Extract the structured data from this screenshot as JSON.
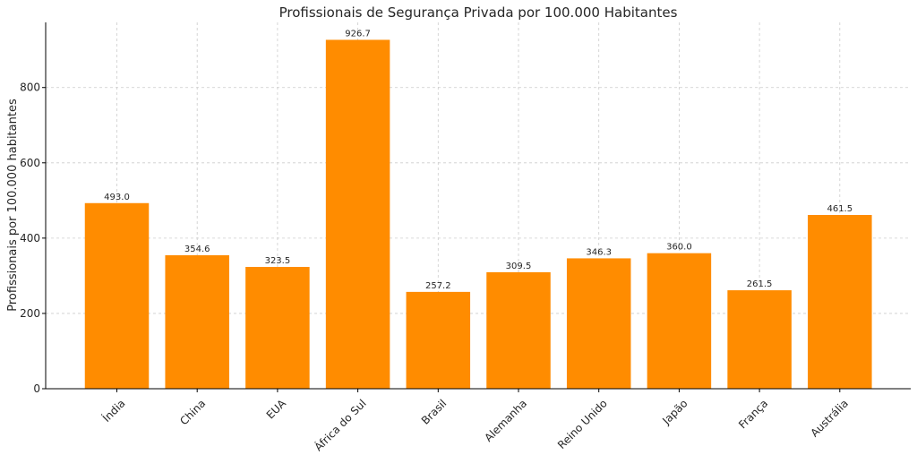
{
  "chart_data": {
    "type": "bar",
    "title": "Profissionais de Segurança Privada por 100.000 Habitantes",
    "xlabel": "",
    "ylabel": "Profissionais por 100.000 habitantes",
    "categories": [
      "Índia",
      "China",
      "EUA",
      "África do Sul",
      "Brasil",
      "Alemanha",
      "Reino Unido",
      "Japão",
      "França",
      "Austrália"
    ],
    "values": [
      493.0,
      354.6,
      323.5,
      926.7,
      257.2,
      309.5,
      346.3,
      360.0,
      261.5,
      461.5
    ],
    "value_labels": [
      "493.0",
      "354.6",
      "323.5",
      "926.7",
      "257.2",
      "309.5",
      "346.3",
      "360.0",
      "261.5",
      "461.5"
    ],
    "yticks": [
      0,
      200,
      400,
      600,
      800
    ],
    "ylim": [
      0,
      973
    ],
    "grid": true,
    "bar_color": "#FF8C00"
  }
}
